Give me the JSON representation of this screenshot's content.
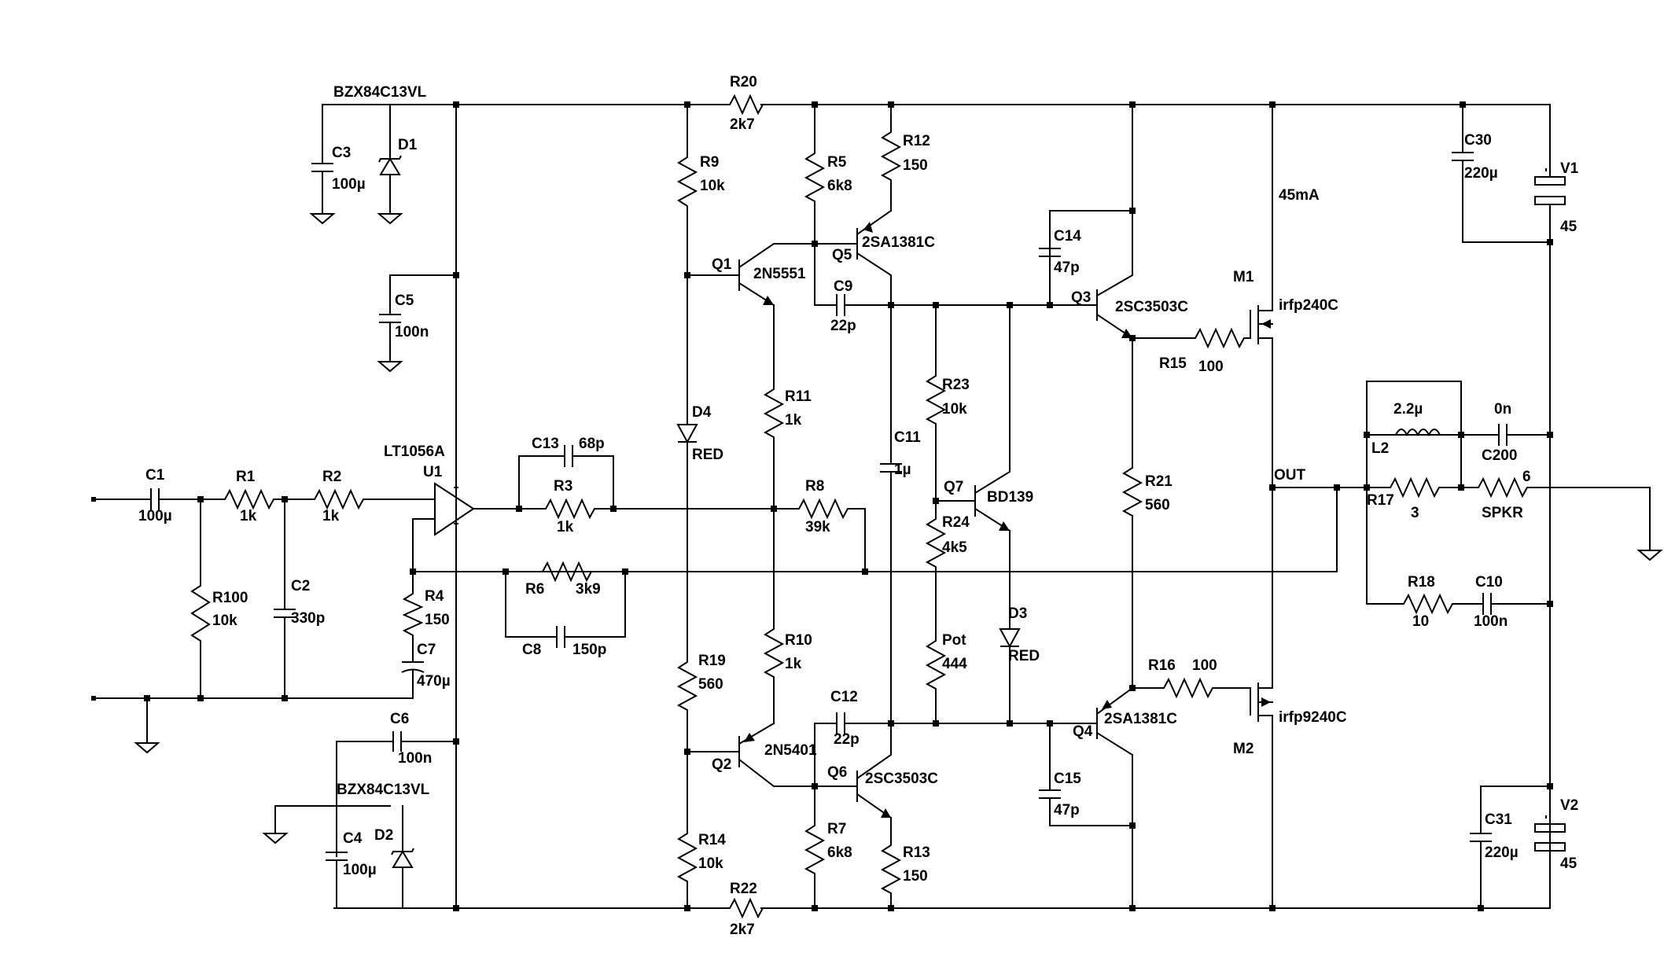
{
  "labels": {
    "d1_part": "BZX84C13VL",
    "d1": "D1",
    "c3": "C3",
    "c3_val": "100µ",
    "c5": "C5",
    "c5_val": "100n",
    "c1": "C1",
    "c1_val": "100µ",
    "r1": "R1",
    "r1_val": "1k",
    "r2": "R2",
    "r2_val": "1k",
    "u1_part": "LT1056A",
    "u1": "U1",
    "r100": "R100",
    "r100_val": "10k",
    "c2": "C2",
    "c2_val": "330p",
    "r4": "R4",
    "r4_val": "150",
    "c7": "C7",
    "c7_val": "470µ",
    "c6": "C6",
    "c6_val": "100n",
    "d2_part": "BZX84C13VL",
    "d2": "D2",
    "c4": "C4",
    "c4_val": "100µ",
    "c13": "C13",
    "c13_val": "68p",
    "r3": "R3",
    "r3_val": "1k",
    "r6": "R6",
    "r6_val": "3k9",
    "c8": "C8",
    "c8_val": "150p",
    "r8": "R8",
    "r8_val": "39k",
    "r20": "R20",
    "r20_val": "2k7",
    "r9": "R9",
    "r9_val": "10k",
    "q1": "Q1",
    "q1_part": "2N5551",
    "d4": "D4",
    "d4_val": "RED",
    "r11": "R11",
    "r11_val": "1k",
    "r10": "R10",
    "r10_val": "1k",
    "r19": "R19",
    "r19_val": "560",
    "q2": "Q2",
    "q2_part": "2N5401",
    "r14": "R14",
    "r14_val": "10k",
    "r22": "R22",
    "r22_val": "2k7",
    "r5": "R5",
    "r5_val": "6k8",
    "r12": "R12",
    "r12_val": "150",
    "q5": "Q5",
    "q5_part": "2SA1381C",
    "c9": "C9",
    "c9_val": "22p",
    "c11": "C11",
    "c11_val": "1µ",
    "c12": "C12",
    "c12_val": "22p",
    "q6": "Q6",
    "q6_part": "2SC3503C",
    "r7": "R7",
    "r7_val": "6k8",
    "r13": "R13",
    "r13_val": "150",
    "r23": "R23",
    "r23_val": "10k",
    "q7": "Q7",
    "q7_part": "BD139",
    "r24": "R24",
    "r24_val": "4k5",
    "pot": "Pot",
    "pot_val": "444",
    "d3": "D3",
    "d3_val": "RED",
    "c14": "C14",
    "c14_val": "47p",
    "q3": "Q3",
    "q3_part": "2SC3503C",
    "r15": "R15",
    "r15_val": "100",
    "r21": "R21",
    "r21_val": "560",
    "r16": "R16",
    "r16_val": "100",
    "q4": "Q4",
    "q4_part": "2SA1381C",
    "c15": "C15",
    "c15_val": "47p",
    "m1": "M1",
    "m1_part": "irfp240C",
    "m2": "M2",
    "m2_part": "irfp9240C",
    "bias_current": "45mA",
    "out": "OUT",
    "l2_val": "2.2µ",
    "l2": "L2",
    "c200_val": "0n",
    "c200": "C200",
    "r17": "R17",
    "r17_val": "3",
    "spkr": "SPKR",
    "spkr_val": "6",
    "r18": "R18",
    "r18_val": "10",
    "c10": "C10",
    "c10_val": "100n",
    "c30": "C30",
    "c30_val": "220µ",
    "c31": "C31",
    "c31_val": "220µ",
    "v1": "V1",
    "v1_val": "45",
    "v2": "V2",
    "v2_val": "45"
  }
}
